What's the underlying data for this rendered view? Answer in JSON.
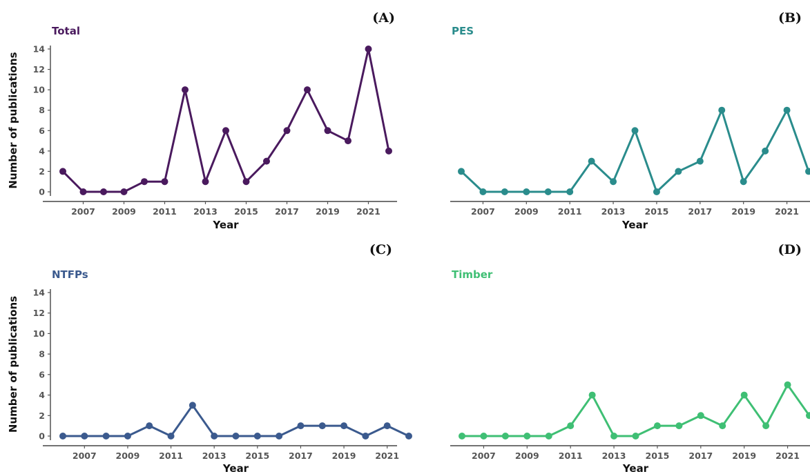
{
  "chart_data": [
    {
      "type": "line",
      "panel_label": "(A)",
      "title": "Total",
      "color": "#4a1a5e",
      "xlabel": "Year",
      "ylabel": "Number of publications",
      "show_y_axis": true,
      "x": [
        2006,
        2007,
        2008,
        2009,
        2010,
        2011,
        2012,
        2013,
        2014,
        2015,
        2016,
        2017,
        2018,
        2019,
        2020,
        2021,
        2022
      ],
      "values": [
        2,
        0,
        0,
        0,
        1,
        1,
        10,
        1,
        6,
        1,
        3,
        6,
        10,
        6,
        5,
        14,
        4
      ],
      "xticks": [
        "2007",
        "2009",
        "2011",
        "2013",
        "2015",
        "2017",
        "2019",
        "2021"
      ],
      "yticks": [
        "0",
        "2",
        "4",
        "6",
        "8",
        "10",
        "12",
        "14"
      ],
      "ylim": [
        0,
        14
      ],
      "grid": false
    },
    {
      "type": "line",
      "panel_label": "(B)",
      "title": "PES",
      "color": "#2a8c8c",
      "xlabel": "Year",
      "ylabel": "",
      "show_y_axis": false,
      "x": [
        2006,
        2007,
        2008,
        2009,
        2010,
        2011,
        2012,
        2013,
        2014,
        2015,
        2016,
        2017,
        2018,
        2019,
        2020,
        2021,
        2022
      ],
      "values": [
        2,
        0,
        0,
        0,
        0,
        0,
        3,
        1,
        6,
        0,
        2,
        3,
        8,
        1,
        4,
        8,
        2
      ],
      "xticks": [
        "2007",
        "2009",
        "2011",
        "2013",
        "2015",
        "2017",
        "2019",
        "2021"
      ],
      "yticks": [],
      "ylim": [
        0,
        14
      ],
      "grid": false
    },
    {
      "type": "line",
      "panel_label": "(C)",
      "title": "NTFPs",
      "color": "#3b5a8e",
      "xlabel": "Year",
      "ylabel": "Number of publications",
      "show_y_axis": true,
      "x": [
        2006,
        2007,
        2008,
        2009,
        2010,
        2011,
        2012,
        2013,
        2014,
        2015,
        2016,
        2017,
        2018,
        2019,
        2020,
        2021,
        2022
      ],
      "values": [
        0,
        0,
        0,
        0,
        1,
        0,
        3,
        0,
        0,
        0,
        0,
        1,
        1,
        1,
        0,
        1,
        0
      ],
      "xticks": [
        "2007",
        "2009",
        "2011",
        "2013",
        "2015",
        "2017",
        "2019",
        "2021"
      ],
      "yticks": [
        "0",
        "2",
        "4",
        "6",
        "8",
        "10",
        "12",
        "14"
      ],
      "ylim": [
        0,
        14
      ],
      "grid": false
    },
    {
      "type": "line",
      "panel_label": "(D)",
      "title": "Timber",
      "color": "#3fbf74",
      "xlabel": "Year",
      "ylabel": "",
      "show_y_axis": false,
      "x": [
        2006,
        2007,
        2008,
        2009,
        2010,
        2011,
        2012,
        2013,
        2014,
        2015,
        2016,
        2017,
        2018,
        2019,
        2020,
        2021,
        2022
      ],
      "values": [
        0,
        0,
        0,
        0,
        0,
        1,
        4,
        0,
        0,
        1,
        1,
        2,
        1,
        4,
        1,
        5,
        2
      ],
      "xticks": [
        "2007",
        "2009",
        "2011",
        "2013",
        "2015",
        "2017",
        "2019",
        "2021"
      ],
      "yticks": [],
      "ylim": [
        0,
        14
      ],
      "grid": false
    }
  ]
}
